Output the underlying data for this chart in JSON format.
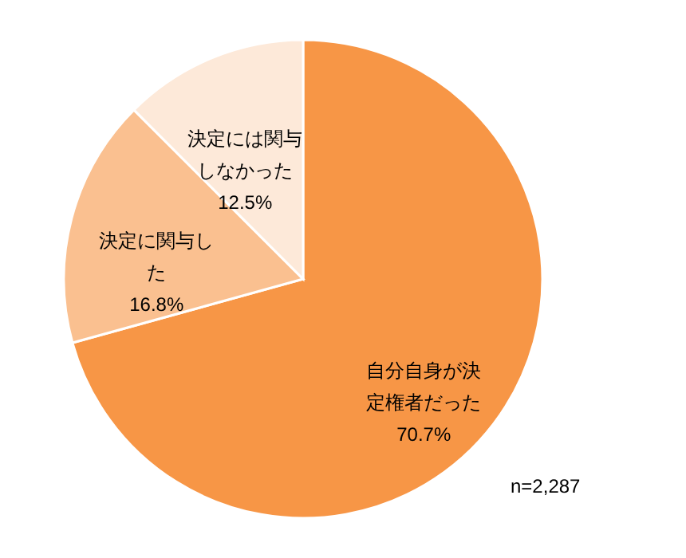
{
  "chart_data": {
    "type": "pie",
    "categories": [
      "自分自身が決定権者だった",
      "決定に関与した",
      "決定には関与しなかった"
    ],
    "values": [
      70.7,
      16.8,
      12.5
    ],
    "colors": [
      "#f79646",
      "#fac090",
      "#fde9d9"
    ],
    "value_labels": [
      "70.7%",
      "16.8%",
      "12.5%"
    ],
    "legend": false,
    "annotations": [
      "n=2,287"
    ]
  }
}
